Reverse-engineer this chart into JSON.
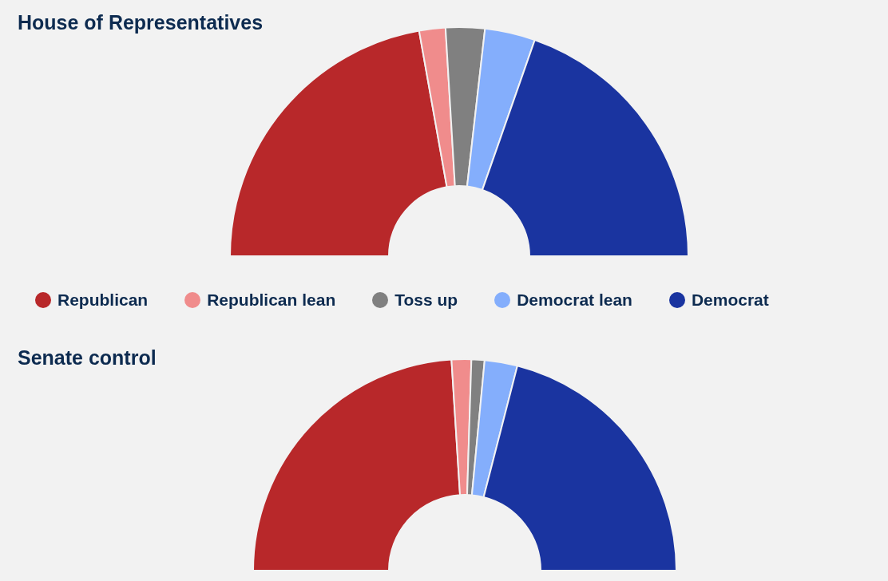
{
  "chart_data": [
    {
      "type": "donut",
      "title": "House of Representatives",
      "categories": [
        "Republican",
        "Republican lean",
        "Toss up",
        "Democrat lean",
        "Democrat"
      ],
      "values": [
        44.4,
        3.7,
        5.5,
        7.1,
        39.3
      ],
      "colors": [
        "#b8282a",
        "#f08c8c",
        "#808080",
        "#84aefc",
        "#1a34a0"
      ],
      "legend": "bottom"
    },
    {
      "type": "donut",
      "title": "Senate control",
      "categories": [
        null,
        null,
        null,
        null,
        null
      ],
      "values": [
        48,
        3,
        2,
        5,
        42
      ],
      "colors": [
        "#b8282a",
        "#f08c8c",
        "#808080",
        "#84aefc",
        "#1a34a0"
      ]
    }
  ]
}
